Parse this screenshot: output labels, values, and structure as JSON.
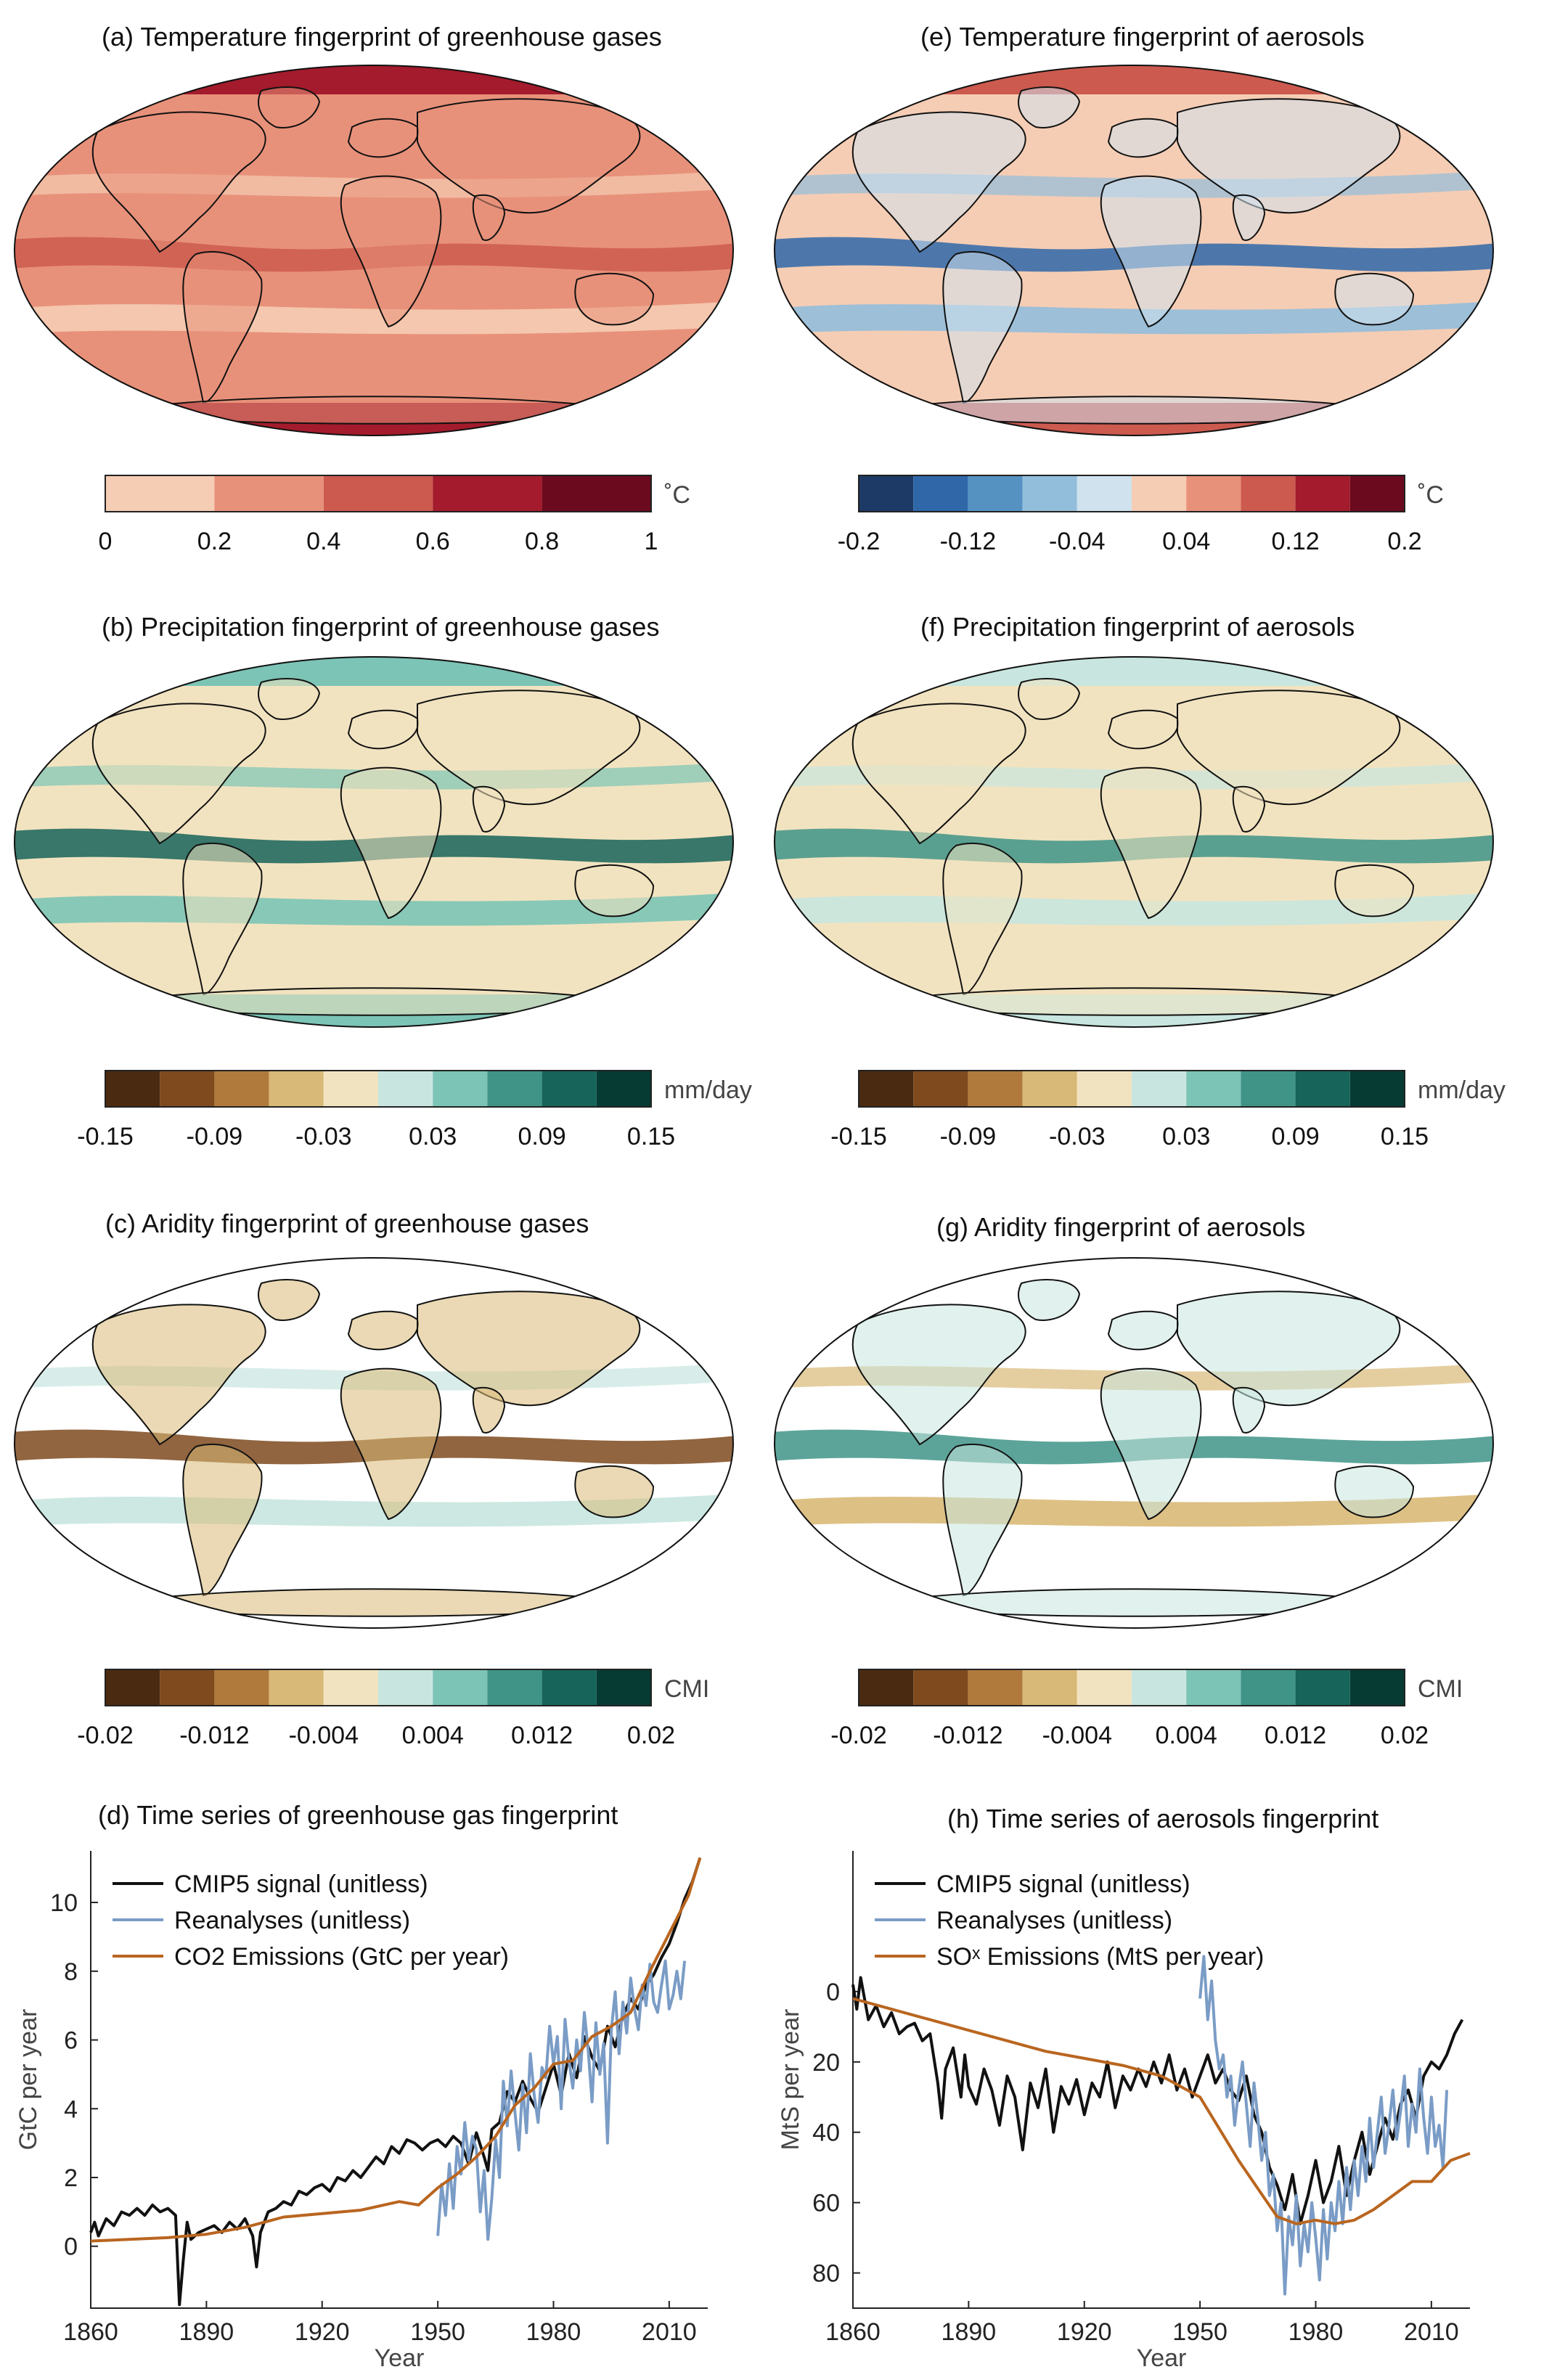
{
  "panels": {
    "a": {
      "title": "(a) Temperature fingerprint of greenhouse gases"
    },
    "e": {
      "title": "(e) Temperature fingerprint of aerosols"
    },
    "b": {
      "title": "(b) Precipitation fingerprint of greenhouse gases"
    },
    "f": {
      "title": "(f) Precipitation fingerprint of aerosols"
    },
    "c": {
      "title": "(c) Aridity fingerprint of greenhouse gases"
    },
    "g": {
      "title": "(g) Aridity fingerprint of aerosols"
    },
    "d": {
      "title": "(d)  Time series of greenhouse gas fingerprint"
    },
    "h": {
      "title": "(h) Time series of aerosols fingerprint"
    }
  },
  "colorbars": {
    "temp_ghg": {
      "unit": "˚C",
      "ticks": [
        "0",
        "0.2",
        "0.4",
        "0.6",
        "0.8",
        "1"
      ],
      "colors": [
        "#f5cdb4",
        "#e8917a",
        "#cd5a4f",
        "#a31b2c",
        "#6b0a1f"
      ]
    },
    "temp_aer": {
      "unit": "˚C",
      "ticks": [
        "-0.2",
        "-0.12",
        "-0.04",
        "0.04",
        "0.12",
        "0.2"
      ],
      "colors": [
        "#1d3a66",
        "#2f67a8",
        "#5592c2",
        "#93bedb",
        "#cfe2ee",
        "#f5cdb4",
        "#e8917a",
        "#cd5a4f",
        "#a31b2c",
        "#6b0a1f"
      ]
    },
    "precip_ghg": {
      "unit": "mm/day",
      "ticks": [
        "-0.15",
        "-0.09",
        "-0.03",
        "0.03",
        "0.09",
        "0.15"
      ],
      "colors": [
        "#4a2a10",
        "#7e4a1e",
        "#b07a3d",
        "#d9b977",
        "#f2e3c0",
        "#c8e6df",
        "#7cc4b6",
        "#3f9487",
        "#17645a",
        "#063b33"
      ]
    },
    "precip_aer": {
      "unit": "mm/day",
      "ticks": [
        "-0.15",
        "-0.09",
        "-0.03",
        "0.03",
        "0.09",
        "0.15"
      ],
      "colors": [
        "#4a2a10",
        "#7e4a1e",
        "#b07a3d",
        "#d9b977",
        "#f2e3c0",
        "#c8e6df",
        "#7cc4b6",
        "#3f9487",
        "#17645a",
        "#063b33"
      ]
    },
    "arid_ghg": {
      "unit": "CMI",
      "ticks": [
        "-0.02",
        "-0.012",
        "-0.004",
        "0.004",
        "0.012",
        "0.02"
      ],
      "colors": [
        "#4a2a10",
        "#7e4a1e",
        "#b07a3d",
        "#d9b977",
        "#f2e3c0",
        "#c8e6df",
        "#7cc4b6",
        "#3f9487",
        "#17645a",
        "#063b33"
      ]
    },
    "arid_aer": {
      "unit": "CMI",
      "ticks": [
        "-0.02",
        "-0.012",
        "-0.004",
        "0.004",
        "0.012",
        "0.02"
      ],
      "colors": [
        "#4a2a10",
        "#7e4a1e",
        "#b07a3d",
        "#d9b977",
        "#f2e3c0",
        "#c8e6df",
        "#7cc4b6",
        "#3f9487",
        "#17645a",
        "#063b33"
      ]
    }
  },
  "maps": {
    "temp_ghg": {
      "ocean": "#e8917a",
      "land": "#e8917a",
      "band_hi": "#cd5a4f",
      "band_lo": "#f5cdb4",
      "polar": "#a31b2c"
    },
    "temp_aer": {
      "ocean": "#f5cdb4",
      "land": "#cfe2ee",
      "band_hi": "#2f67a8",
      "band_lo": "#93bedb",
      "polar": "#cd5a4f"
    },
    "precip_ghg": {
      "ocean": "#f2e3c0",
      "land": "#f2e3c0",
      "band_hi": "#17645a",
      "band_lo": "#7cc4b6",
      "polar": "#7cc4b6"
    },
    "precip_aer": {
      "ocean": "#f2e3c0",
      "land": "#f2e3c0",
      "band_hi": "#3f9487",
      "band_lo": "#c8e6df",
      "polar": "#c8e6df"
    },
    "arid_ghg": {
      "ocean": "#ffffff",
      "land": "#d9b977",
      "band_hi": "#7e4a1e",
      "band_lo": "#c8e6df",
      "polar": "#ffffff"
    },
    "arid_aer": {
      "ocean": "#ffffff",
      "land": "#c8e6df",
      "band_hi": "#3f9487",
      "band_lo": "#d9b977",
      "polar": "#ffffff"
    }
  },
  "chart_data": [
    {
      "type": "line",
      "id": "d",
      "title": "(d)  Time series of greenhouse gas fingerprint",
      "xlabel": "Year",
      "ylabel": "GtC per year",
      "xlim": [
        1860,
        2020
      ],
      "ylim": [
        -1.8,
        11.5
      ],
      "xticks": [
        1860,
        1890,
        1920,
        1950,
        1980,
        2010
      ],
      "yticks": [
        0,
        2,
        4,
        6,
        8,
        10
      ],
      "legend": "top-left",
      "series": [
        {
          "name": "CMIP5 signal (unitless)",
          "color": "#111111",
          "x": [
            1860,
            1861,
            1862,
            1864,
            1866,
            1868,
            1870,
            1872,
            1874,
            1876,
            1878,
            1880,
            1882,
            1883,
            1884,
            1885,
            1886,
            1888,
            1890,
            1892,
            1894,
            1896,
            1898,
            1900,
            1902,
            1903,
            1904,
            1906,
            1908,
            1910,
            1912,
            1914,
            1916,
            1918,
            1920,
            1922,
            1924,
            1926,
            1928,
            1930,
            1932,
            1934,
            1936,
            1938,
            1940,
            1942,
            1944,
            1946,
            1948,
            1950,
            1952,
            1954,
            1956,
            1958,
            1960,
            1962,
            1963,
            1964,
            1966,
            1968,
            1970,
            1972,
            1974,
            1976,
            1978,
            1980,
            1982,
            1984,
            1986,
            1988,
            1990,
            1992,
            1994,
            1996,
            1998,
            2000,
            2002,
            2004,
            2006,
            2008,
            2010,
            2012,
            2014,
            2016,
            2018
          ],
          "y": [
            0.4,
            0.7,
            0.3,
            0.8,
            0.6,
            1.0,
            0.9,
            1.1,
            0.9,
            1.2,
            1.0,
            1.1,
            0.9,
            -1.7,
            -0.4,
            0.7,
            0.2,
            0.4,
            0.5,
            0.6,
            0.4,
            0.7,
            0.5,
            0.8,
            0.3,
            -0.6,
            0.4,
            1.0,
            1.1,
            1.3,
            1.2,
            1.6,
            1.5,
            1.7,
            1.8,
            1.6,
            2.0,
            1.9,
            2.2,
            2.0,
            2.3,
            2.6,
            2.4,
            2.9,
            2.7,
            3.1,
            3.0,
            2.8,
            3.0,
            3.1,
            2.9,
            3.2,
            3.0,
            2.4,
            3.3,
            2.6,
            2.2,
            3.4,
            3.6,
            4.5,
            4.2,
            4.8,
            4.3,
            3.9,
            4.6,
            5.3,
            4.4,
            5.6,
            4.9,
            6.1,
            5.5,
            5.1,
            6.4,
            5.8,
            6.7,
            7.2,
            6.9,
            7.6,
            7.9,
            8.4,
            8.8,
            9.4,
            10.1,
            10.6,
            11.3
          ]
        },
        {
          "name": "Reanalyses (unitless)",
          "color": "#7a9cc6",
          "x": [
            1950,
            1951,
            1952,
            1953,
            1954,
            1955,
            1956,
            1957,
            1958,
            1959,
            1960,
            1961,
            1962,
            1963,
            1964,
            1965,
            1966,
            1967,
            1968,
            1969,
            1970,
            1971,
            1972,
            1973,
            1974,
            1975,
            1976,
            1977,
            1978,
            1979,
            1980,
            1981,
            1982,
            1983,
            1984,
            1985,
            1986,
            1987,
            1988,
            1989,
            1990,
            1991,
            1992,
            1993,
            1994,
            1995,
            1996,
            1997,
            1998,
            1999,
            2000,
            2001,
            2002,
            2003,
            2004,
            2005,
            2006,
            2007,
            2008,
            2009,
            2010,
            2011,
            2012,
            2013,
            2014
          ],
          "y": [
            0.3,
            1.8,
            0.9,
            2.4,
            1.1,
            2.9,
            2.1,
            3.6,
            2.5,
            3.2,
            2.8,
            1.0,
            2.2,
            0.2,
            1.4,
            3.1,
            2.0,
            4.8,
            3.5,
            5.1,
            3.9,
            2.8,
            4.7,
            3.3,
            5.6,
            4.4,
            3.6,
            5.2,
            4.9,
            6.4,
            5.3,
            6.1,
            4.0,
            6.6,
            5.4,
            4.6,
            6.0,
            5.1,
            6.8,
            5.7,
            4.2,
            6.5,
            5.0,
            5.9,
            3.0,
            6.3,
            7.4,
            5.6,
            7.1,
            6.2,
            7.8,
            6.9,
            6.3,
            7.6,
            7.0,
            8.2,
            7.1,
            6.8,
            7.6,
            8.3,
            6.9,
            7.3,
            8.0,
            7.2,
            8.3
          ]
        },
        {
          "name": "CO2 Emissions (GtC per year)",
          "color": "#b9651f",
          "x": [
            1860,
            1870,
            1880,
            1890,
            1900,
            1910,
            1920,
            1930,
            1940,
            1945,
            1950,
            1955,
            1960,
            1965,
            1970,
            1975,
            1980,
            1985,
            1990,
            1995,
            2000,
            2005,
            2010,
            2015,
            2018
          ],
          "y": [
            0.15,
            0.2,
            0.25,
            0.35,
            0.55,
            0.85,
            0.95,
            1.05,
            1.3,
            1.2,
            1.7,
            2.1,
            2.6,
            3.2,
            4.1,
            4.6,
            5.3,
            5.4,
            6.1,
            6.4,
            6.8,
            8.0,
            9.1,
            10.2,
            11.3
          ]
        }
      ]
    },
    {
      "type": "line",
      "id": "h",
      "title": "(h) Time series of aerosols fingerprint",
      "xlabel": "Year",
      "ylabel": "MtS per year",
      "xlim": [
        1860,
        2020
      ],
      "ylim": [
        90,
        -40
      ],
      "xticks": [
        1860,
        1890,
        1920,
        1950,
        1980,
        2010
      ],
      "yticks": [
        0,
        20,
        40,
        60,
        80
      ],
      "legend": "top-left",
      "series": [
        {
          "name": "CMIP5 signal (unitless)",
          "color": "#111111",
          "x": [
            1860,
            1861,
            1862,
            1864,
            1866,
            1868,
            1870,
            1872,
            1874,
            1876,
            1878,
            1880,
            1882,
            1883,
            1884,
            1886,
            1888,
            1889,
            1890,
            1892,
            1894,
            1896,
            1898,
            1900,
            1902,
            1904,
            1906,
            1908,
            1910,
            1912,
            1914,
            1916,
            1918,
            1920,
            1922,
            1924,
            1926,
            1928,
            1930,
            1932,
            1934,
            1936,
            1938,
            1940,
            1942,
            1944,
            1946,
            1948,
            1950,
            1952,
            1954,
            1956,
            1958,
            1960,
            1962,
            1964,
            1966,
            1968,
            1970,
            1972,
            1974,
            1976,
            1978,
            1980,
            1982,
            1984,
            1986,
            1988,
            1990,
            1992,
            1994,
            1996,
            1998,
            2000,
            2002,
            2004,
            2006,
            2008,
            2010,
            2012,
            2014,
            2016,
            2018
          ],
          "y": [
            -2,
            5,
            -4,
            8,
            4,
            10,
            6,
            12,
            10,
            9,
            14,
            12,
            26,
            36,
            22,
            16,
            30,
            18,
            27,
            32,
            22,
            28,
            38,
            24,
            30,
            45,
            26,
            33,
            22,
            40,
            27,
            32,
            25,
            35,
            26,
            30,
            20,
            33,
            24,
            28,
            22,
            27,
            20,
            26,
            18,
            28,
            22,
            30,
            24,
            18,
            26,
            22,
            28,
            31,
            24,
            35,
            40,
            50,
            55,
            62,
            52,
            66,
            58,
            48,
            60,
            54,
            44,
            58,
            48,
            40,
            52,
            44,
            36,
            42,
            32,
            28,
            36,
            24,
            20,
            22,
            18,
            12,
            8
          ]
        },
        {
          "name": "Reanalyses (unitless)",
          "color": "#7a9cc6",
          "x": [
            1950,
            1951,
            1952,
            1953,
            1954,
            1955,
            1956,
            1957,
            1958,
            1959,
            1960,
            1961,
            1962,
            1963,
            1964,
            1965,
            1966,
            1967,
            1968,
            1969,
            1970,
            1971,
            1972,
            1973,
            1974,
            1975,
            1976,
            1977,
            1978,
            1979,
            1980,
            1981,
            1982,
            1983,
            1984,
            1985,
            1986,
            1987,
            1988,
            1989,
            1990,
            1991,
            1992,
            1993,
            1994,
            1995,
            1996,
            1997,
            1998,
            1999,
            2000,
            2001,
            2002,
            2003,
            2004,
            2005,
            2006,
            2007,
            2008,
            2009,
            2010,
            2011,
            2012,
            2013,
            2014
          ],
          "y": [
            2,
            -10,
            8,
            -3,
            14,
            22,
            18,
            30,
            24,
            38,
            28,
            20,
            32,
            44,
            26,
            36,
            48,
            40,
            58,
            52,
            68,
            60,
            86,
            64,
            72,
            58,
            78,
            66,
            74,
            60,
            70,
            82,
            62,
            76,
            60,
            68,
            54,
            66,
            50,
            62,
            48,
            58,
            44,
            54,
            36,
            50,
            40,
            30,
            46,
            38,
            28,
            42,
            34,
            24,
            44,
            32,
            40,
            22,
            36,
            46,
            30,
            44,
            38,
            50,
            28
          ]
        },
        {
          "name": "SOˣ Emissions (MtS per year)",
          "color": "#b9651f",
          "x": [
            1860,
            1870,
            1880,
            1890,
            1900,
            1910,
            1920,
            1930,
            1940,
            1945,
            1950,
            1955,
            1960,
            1965,
            1970,
            1975,
            1980,
            1985,
            1990,
            1995,
            2000,
            2005,
            2010,
            2015,
            2020
          ],
          "y": [
            2,
            5,
            8,
            11,
            14,
            17,
            19,
            21,
            24,
            27,
            30,
            39,
            48,
            56,
            64,
            66,
            65,
            66,
            65,
            62,
            58,
            54,
            54,
            48,
            46
          ]
        }
      ]
    }
  ]
}
